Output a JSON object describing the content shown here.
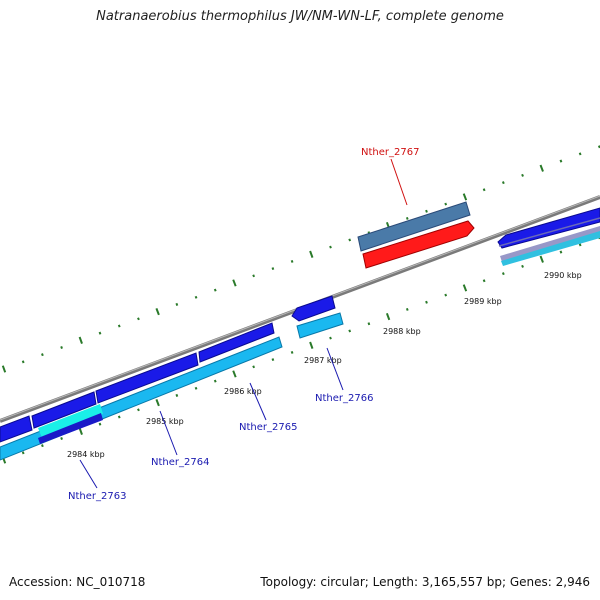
{
  "title": "Natranaerobius thermophilus JW/NM-WN-LF, complete genome",
  "footer": {
    "accession": "Accession: NC_010718",
    "topology": "Topology: circular; Length: 3,165,557 bp; Genes: 2,946"
  },
  "colors": {
    "backbone": "#808080",
    "tick": "#2a7a2a",
    "cds_dark_blue": "#1a1ae8",
    "cds_light_blue": "#1ab8f0",
    "cds_red": "#ff1a1a",
    "cds_steel": "#4a7aa8",
    "label_blue": "#1a1ab0",
    "label_red": "#d01010"
  },
  "scale_labels": [
    "2984 kbp",
    "2985 kbp",
    "2986 kbp",
    "2987 kbp",
    "2988 kbp",
    "2989 kbp",
    "2990 kbp"
  ],
  "gene_labels": [
    {
      "text": "Nther_2763",
      "color": "blue"
    },
    {
      "text": "Nther_2764",
      "color": "blue"
    },
    {
      "text": "Nther_2765",
      "color": "blue"
    },
    {
      "text": "Nther_2766",
      "color": "blue"
    },
    {
      "text": "Nther_2767",
      "color": "red"
    }
  ]
}
